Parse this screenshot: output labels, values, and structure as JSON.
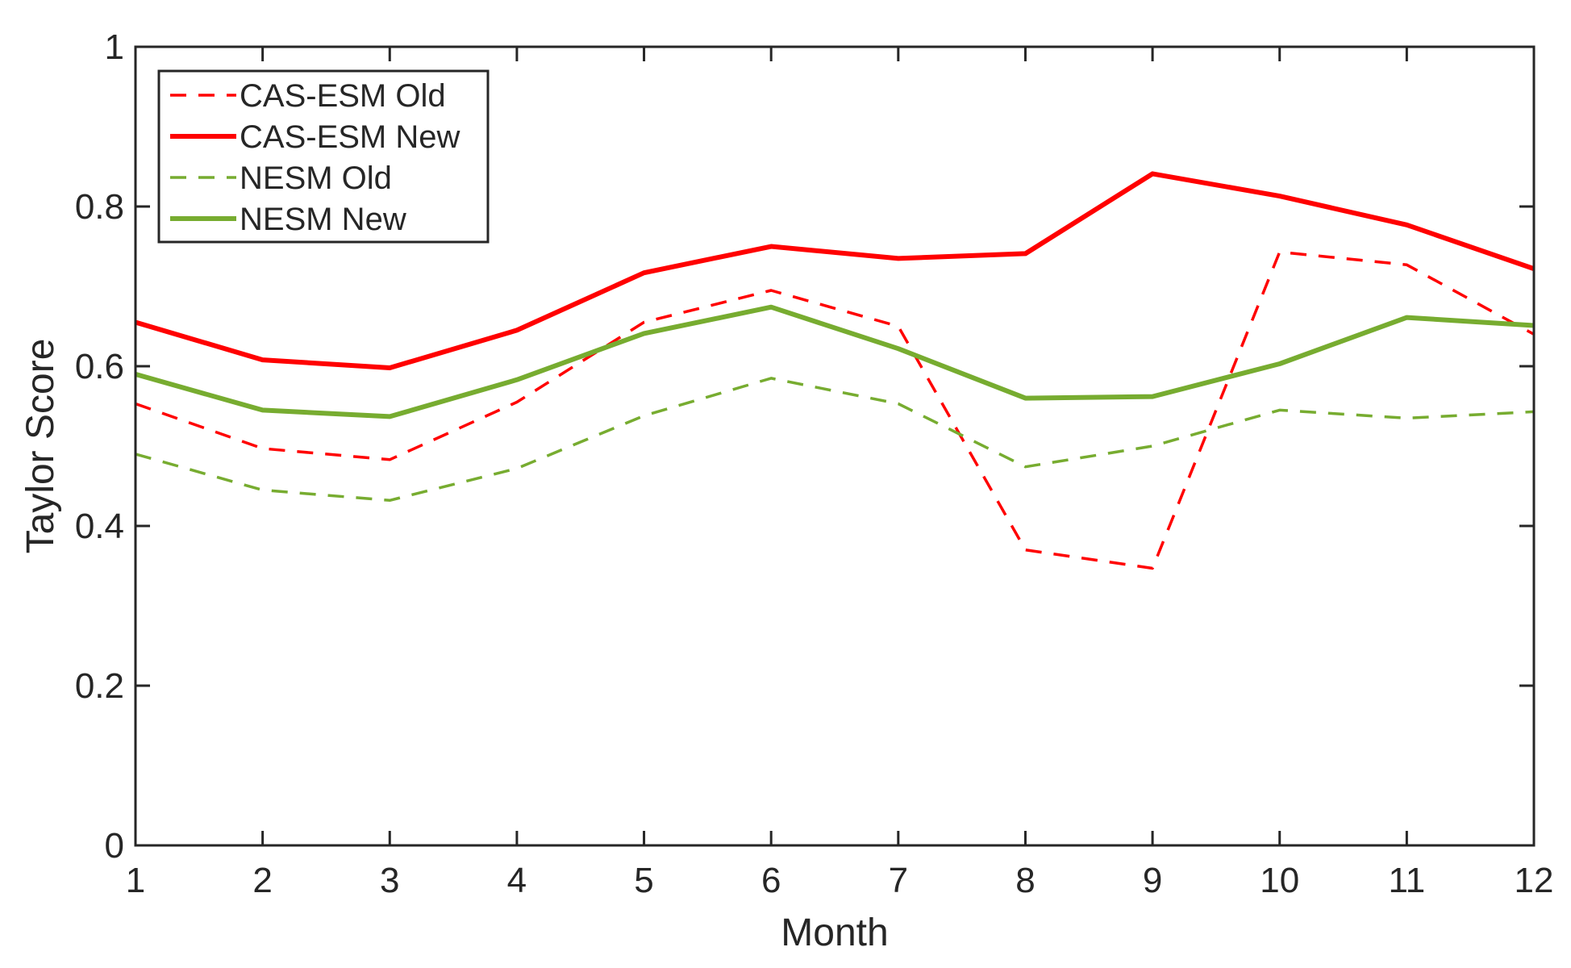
{
  "chart_data": {
    "type": "line",
    "title": "",
    "xlabel": "Month",
    "ylabel": "Taylor Score",
    "x": [
      1,
      2,
      3,
      4,
      5,
      6,
      7,
      8,
      9,
      10,
      11,
      12
    ],
    "xlim": [
      1,
      12
    ],
    "ylim": [
      0,
      1
    ],
    "xticks": [
      1,
      2,
      3,
      4,
      5,
      6,
      7,
      8,
      9,
      10,
      11,
      12
    ],
    "xtick_labels": [
      "1",
      "2",
      "3",
      "4",
      "5",
      "6",
      "7",
      "8",
      "9",
      "10",
      "11",
      "12"
    ],
    "yticks": [
      0,
      0.2,
      0.4,
      0.6,
      0.8,
      1
    ],
    "ytick_labels": [
      "0",
      "0.2",
      "0.4",
      "0.6",
      "0.8",
      "1"
    ],
    "grid": false,
    "legend_position": "top-left",
    "series": [
      {
        "name": "CAS-ESM Old",
        "color": "#ff0000",
        "style": "dashed",
        "values": [
          0.553,
          0.497,
          0.483,
          0.555,
          0.655,
          0.695,
          0.65,
          0.37,
          0.347,
          0.743,
          0.727,
          0.64
        ]
      },
      {
        "name": "CAS-ESM New",
        "color": "#ff0000",
        "style": "solid",
        "values": [
          0.655,
          0.608,
          0.598,
          0.645,
          0.717,
          0.75,
          0.735,
          0.741,
          0.841,
          0.813,
          0.777,
          0.722
        ]
      },
      {
        "name": "NESM Old",
        "color": "#77ac30",
        "style": "dashed",
        "values": [
          0.49,
          0.445,
          0.432,
          0.472,
          0.538,
          0.585,
          0.553,
          0.474,
          0.5,
          0.545,
          0.535,
          0.543
        ]
      },
      {
        "name": "NESM New",
        "color": "#77ac30",
        "style": "solid",
        "values": [
          0.59,
          0.545,
          0.537,
          0.583,
          0.641,
          0.674,
          0.622,
          0.56,
          0.562,
          0.603,
          0.661,
          0.651
        ]
      }
    ]
  }
}
